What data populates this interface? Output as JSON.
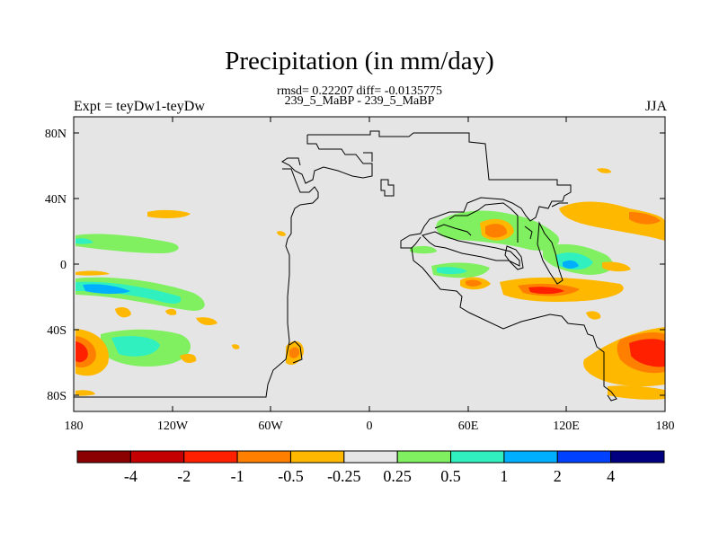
{
  "title": "Precipitation (in mm/day)",
  "stats": "rmsd= 0.22207 diff= -0.0135775",
  "case_label": "239_5_MaBP - 239_5_MaBP",
  "expt_label": "Expt = teyDw1-teyDw",
  "season": "JJA",
  "lat_ticks": [
    "80N",
    "40N",
    "0",
    "40S",
    "80S"
  ],
  "lon_ticks": [
    "180",
    "120W",
    "60W",
    "0",
    "60E",
    "120E",
    "180"
  ],
  "colorbar": {
    "labels": [
      "-4",
      "-2",
      "-1",
      "-0.5",
      "-0.25",
      "0.25",
      "0.5",
      "1",
      "2",
      "4"
    ],
    "colors": [
      "#8b0000",
      "#c40000",
      "#ff2000",
      "#ff8000",
      "#ffb800",
      "#e5e5e5",
      "#80f060",
      "#30f0c0",
      "#00b0ff",
      "#0040ff",
      "#000080"
    ]
  },
  "colors": {
    "land": "#e5e5e5",
    "coastline": "#000000"
  }
}
